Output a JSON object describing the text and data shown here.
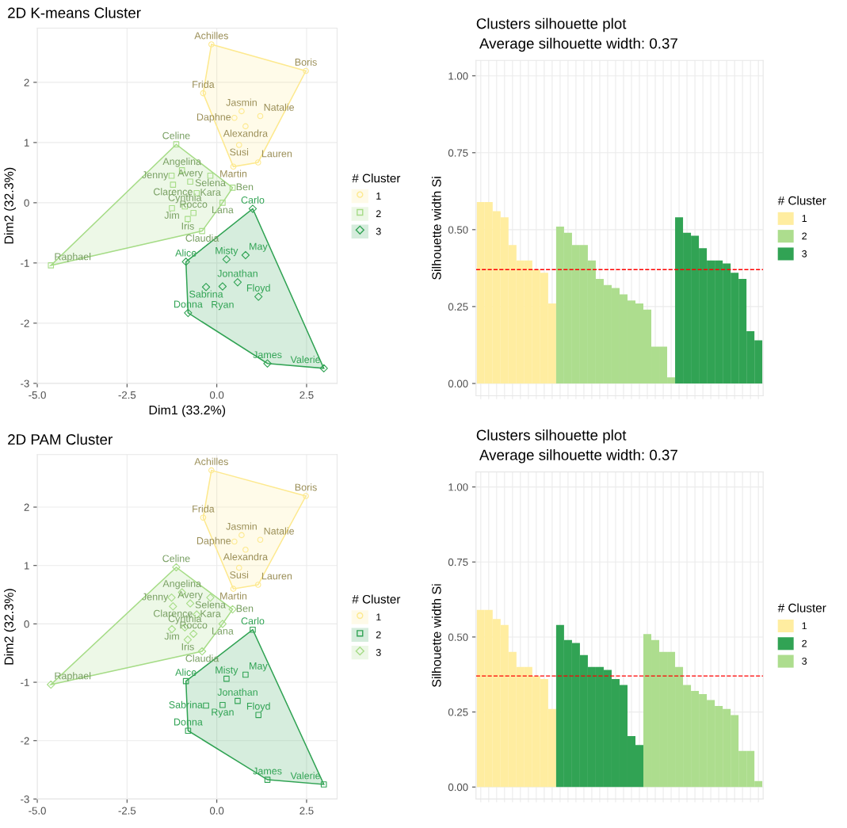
{
  "chart_data": [
    {
      "type": "scatter",
      "title": "2D K-means Cluster",
      "xlabel": "Dim1 (33.2%)",
      "ylabel": "Dim2 (32.3%)",
      "legend_title": "# Cluster",
      "legend": "right",
      "grid": true,
      "xlim": [
        -5.0,
        3.35
      ],
      "ylim": [
        -3.0,
        2.9
      ],
      "xticks": [
        {
          "value": -5,
          "label": "-5.0"
        },
        {
          "value": -2.5,
          "label": "-2.5"
        },
        {
          "value": 0,
          "label": "0.0"
        },
        {
          "value": 2.5,
          "label": "2.5"
        }
      ],
      "yticks": [
        -3,
        -2,
        -1,
        0,
        1,
        2
      ],
      "series": [
        {
          "name": "1",
          "color": "#fde98f",
          "marker": "circle",
          "x": [
            -0.15,
            2.48,
            -0.38,
            0.69,
            1.21,
            0.49,
            0.8,
            0.62,
            1.15,
            0.46
          ],
          "values": [
            2.63,
            2.19,
            1.82,
            1.52,
            1.44,
            1.41,
            1.27,
            0.96,
            0.67,
            0.6
          ],
          "value_labels": [
            "Achilles",
            "Boris",
            "Frida",
            "Jasmin",
            "Natalie",
            "Daphne",
            "Alexandra",
            "Susi",
            "Lauren",
            "Martin"
          ]
        },
        {
          "name": "2",
          "color": "#a6dc87",
          "marker": "square",
          "x": [
            -1.13,
            -0.97,
            -1.26,
            -1.22,
            -0.18,
            -0.74,
            -0.56,
            0.44,
            0.16,
            -0.89,
            -1.25,
            -0.65,
            -0.81,
            -0.41,
            -4.62
          ],
          "values": [
            0.97,
            0.54,
            0.45,
            0.3,
            0.45,
            0.35,
            0.16,
            0.25,
            0.0,
            -0.06,
            -0.09,
            -0.17,
            -0.27,
            -0.47,
            -1.04
          ],
          "value_labels": [
            "Celine",
            "Angelina",
            "Jenny",
            "Clarence",
            "Selena",
            "Avery",
            "Kara",
            "Ben",
            "Lana",
            "Cynthia",
            "Jim",
            "Rocco",
            "Iris",
            "Claudia",
            "Raphael"
          ]
        },
        {
          "name": "3",
          "color": "#31a354",
          "marker": "diamond",
          "x": [
            1.0,
            -0.86,
            -0.8,
            1.41,
            2.98,
            0.27,
            0.8,
            0.58,
            1.16,
            -0.3,
            0.16
          ],
          "values": [
            -0.1,
            -0.98,
            -1.83,
            -2.67,
            -2.75,
            -0.94,
            -0.87,
            -1.32,
            -1.56,
            -1.4,
            -1.39
          ],
          "value_labels": [
            "Carlo",
            "Alice",
            "Donna",
            "James",
            "Valerie",
            "Misty",
            "May",
            "Jonathan",
            "Floyd",
            "Sabrina",
            "Ryan"
          ]
        }
      ]
    },
    {
      "type": "bar",
      "title": "Clusters silhouette plot",
      "subtitle": "Average silhouette width: 0.37",
      "ylabel": "Silhouette width Si",
      "legend_title": "# Cluster",
      "legend": "right",
      "grid": true,
      "categories": [
        null,
        null,
        null,
        null,
        null,
        null,
        null,
        null,
        null,
        null,
        null,
        null,
        null,
        null,
        null,
        null,
        null,
        null,
        null,
        null,
        null,
        null,
        null,
        null,
        null,
        null,
        null,
        null,
        null,
        null,
        null,
        null,
        null,
        null,
        null,
        null
      ],
      "ylim": [
        -0.04,
        1.05
      ],
      "yticks": [
        {
          "value": 0,
          "label": "0.00"
        },
        {
          "value": 0.25,
          "label": "0.25"
        },
        {
          "value": 0.5,
          "label": "0.50"
        },
        {
          "value": 0.75,
          "label": "0.75"
        },
        {
          "value": 1,
          "label": "1.00"
        }
      ],
      "ref_lines": [
        {
          "axis": "y",
          "value": 0.37,
          "color": "#ff0000",
          "line_style": "dashed"
        }
      ],
      "series": [
        {
          "name": "1",
          "color": "#ffeda0",
          "values": [
            0.59,
            0.59,
            0.56,
            0.54,
            0.45,
            0.4,
            0.4,
            0.37,
            0.36,
            0.26,
            null,
            null,
            null,
            null,
            null,
            null,
            null,
            null,
            null,
            null,
            null,
            null,
            null,
            null,
            null,
            null,
            null,
            null,
            null,
            null,
            null,
            null,
            null,
            null,
            null,
            null
          ]
        },
        {
          "name": "2",
          "color": "#addd8e",
          "values": [
            null,
            null,
            null,
            null,
            null,
            null,
            null,
            null,
            null,
            null,
            0.51,
            0.49,
            0.45,
            0.45,
            0.4,
            0.34,
            0.32,
            0.31,
            0.29,
            0.27,
            0.26,
            0.24,
            0.12,
            0.12,
            0.02,
            null,
            null,
            null,
            null,
            null,
            null,
            null,
            null,
            null,
            null,
            null
          ]
        },
        {
          "name": "3",
          "color": "#31a354",
          "values": [
            null,
            null,
            null,
            null,
            null,
            null,
            null,
            null,
            null,
            null,
            null,
            null,
            null,
            null,
            null,
            null,
            null,
            null,
            null,
            null,
            null,
            null,
            null,
            null,
            null,
            0.54,
            0.49,
            0.48,
            0.44,
            0.4,
            0.4,
            0.39,
            0.36,
            0.34,
            0.17,
            0.14
          ]
        }
      ]
    },
    {
      "type": "scatter",
      "title": "2D PAM Cluster",
      "ylabel": "Dim2 (32.3%)",
      "legend_title": "# Cluster",
      "legend": "right",
      "grid": true,
      "xlim": [
        -5.0,
        3.35
      ],
      "ylim": [
        -3.0,
        2.9
      ],
      "xticks": [
        {
          "value": -5,
          "label": "-5.0"
        },
        {
          "value": -2.5,
          "label": "-2.5"
        },
        {
          "value": 0,
          "label": "0.0"
        },
        {
          "value": 2.5,
          "label": "2.5"
        }
      ],
      "yticks": [
        -3,
        -2,
        -1,
        0,
        1,
        2
      ],
      "series": [
        {
          "name": "1",
          "color": "#fde98f",
          "marker": "circle",
          "x": [
            -0.15,
            2.48,
            -0.38,
            0.69,
            1.21,
            0.49,
            0.8,
            0.62,
            1.15,
            0.46
          ],
          "values": [
            2.63,
            2.19,
            1.82,
            1.52,
            1.44,
            1.41,
            1.27,
            0.96,
            0.67,
            0.6
          ],
          "value_labels": [
            "Achilles",
            "Boris",
            "Frida",
            "Jasmin",
            "Natalie",
            "Daphne",
            "Alexandra",
            "Susi",
            "Lauren",
            "Martin"
          ]
        },
        {
          "name": "2",
          "color": "#31a354",
          "marker": "square",
          "x": [
            1.0,
            -0.86,
            -0.8,
            1.41,
            2.98,
            0.27,
            0.8,
            0.58,
            1.16,
            -0.3,
            0.16
          ],
          "values": [
            -0.1,
            -0.98,
            -1.83,
            -2.67,
            -2.75,
            -0.94,
            -0.87,
            -1.32,
            -1.56,
            -1.4,
            -1.39
          ],
          "value_labels": [
            "Carlo",
            "Alice",
            "Donna",
            "James",
            "Valerie",
            "Misty",
            "May",
            "Jonathan",
            "Floyd",
            "Sabrina",
            "Ryan"
          ]
        },
        {
          "name": "3",
          "color": "#a6dc87",
          "marker": "diamond",
          "x": [
            -1.13,
            -0.97,
            -1.26,
            -1.22,
            -0.18,
            -0.74,
            -0.56,
            0.44,
            0.16,
            -0.89,
            -1.25,
            -0.65,
            -0.81,
            -0.41,
            -4.62
          ],
          "values": [
            0.97,
            0.54,
            0.45,
            0.3,
            0.45,
            0.35,
            0.16,
            0.25,
            0.0,
            -0.06,
            -0.09,
            -0.17,
            -0.27,
            -0.47,
            -1.04
          ],
          "value_labels": [
            "Celine",
            "Angelina",
            "Jenny",
            "Clarence",
            "Selena",
            "Avery",
            "Kara",
            "Ben",
            "Lana",
            "Cynthia",
            "Jim",
            "Rocco",
            "Iris",
            "Claudia",
            "Raphael"
          ]
        }
      ]
    },
    {
      "type": "bar",
      "title": "Clusters silhouette plot",
      "subtitle": "Average silhouette width: 0.37",
      "ylabel": "Silhouette width Si",
      "legend_title": "# Cluster",
      "legend": "right",
      "grid": true,
      "categories": [
        null,
        null,
        null,
        null,
        null,
        null,
        null,
        null,
        null,
        null,
        null,
        null,
        null,
        null,
        null,
        null,
        null,
        null,
        null,
        null,
        null,
        null,
        null,
        null,
        null,
        null,
        null,
        null,
        null,
        null,
        null,
        null,
        null,
        null,
        null,
        null
      ],
      "ylim": [
        -0.04,
        1.05
      ],
      "yticks": [
        {
          "value": 0,
          "label": "0.00"
        },
        {
          "value": 0.25,
          "label": "0.25"
        },
        {
          "value": 0.5,
          "label": "0.50"
        },
        {
          "value": 0.75,
          "label": "0.75"
        },
        {
          "value": 1,
          "label": "1.00"
        }
      ],
      "ref_lines": [
        {
          "axis": "y",
          "value": 0.37,
          "color": "#ff0000",
          "line_style": "dashed"
        }
      ],
      "series": [
        {
          "name": "1",
          "color": "#ffeda0",
          "values": [
            0.59,
            0.59,
            0.56,
            0.54,
            0.45,
            0.4,
            0.4,
            0.37,
            0.36,
            0.26,
            null,
            null,
            null,
            null,
            null,
            null,
            null,
            null,
            null,
            null,
            null,
            null,
            null,
            null,
            null,
            null,
            null,
            null,
            null,
            null,
            null,
            null,
            null,
            null,
            null,
            null
          ]
        },
        {
          "name": "2",
          "color": "#31a354",
          "values": [
            null,
            null,
            null,
            null,
            null,
            null,
            null,
            null,
            null,
            null,
            0.54,
            0.49,
            0.48,
            0.44,
            0.4,
            0.4,
            0.39,
            0.36,
            0.34,
            0.17,
            0.14,
            null,
            null,
            null,
            null,
            null,
            null,
            null,
            null,
            null,
            null,
            null,
            null,
            null,
            null,
            null
          ]
        },
        {
          "name": "3",
          "color": "#addd8e",
          "values": [
            null,
            null,
            null,
            null,
            null,
            null,
            null,
            null,
            null,
            null,
            null,
            null,
            null,
            null,
            null,
            null,
            null,
            null,
            null,
            null,
            null,
            0.51,
            0.49,
            0.45,
            0.45,
            0.4,
            0.34,
            0.32,
            0.31,
            0.29,
            0.27,
            0.26,
            0.24,
            0.12,
            0.12,
            0.02
          ]
        }
      ]
    }
  ]
}
